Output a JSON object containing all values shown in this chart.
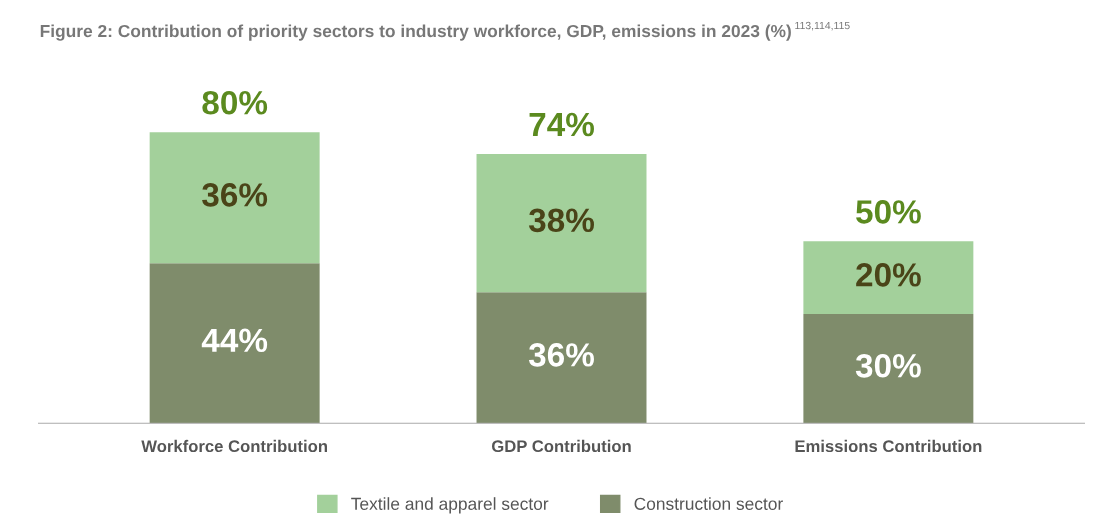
{
  "chart_data": {
    "type": "bar",
    "title": "Figure 2: Contribution of priority sectors to industry workforce, GDP, emissions in 2023 (%)$^{113,114,115}$",
    "categories": [
      "Workforce Contribution",
      "GDP Contribution",
      "Emissions Contribution"
    ],
    "stacked": true,
    "series": [
      {
        "name": "Construction sector",
        "color": "#7f8c6b",
        "values": [
          44,
          36,
          30
        ],
        "value_labels": [
          "44%",
          "36%",
          "30%"
        ]
      },
      {
        "name": "Textile and apparel sector",
        "color": "#a3d09b",
        "values": [
          36,
          38,
          20
        ],
        "value_labels": [
          "36%",
          "38%",
          "20%"
        ]
      }
    ],
    "totals": [
      "80%",
      "74%",
      "50%"
    ],
    "legend": "bottom",
    "grid": false
  }
}
